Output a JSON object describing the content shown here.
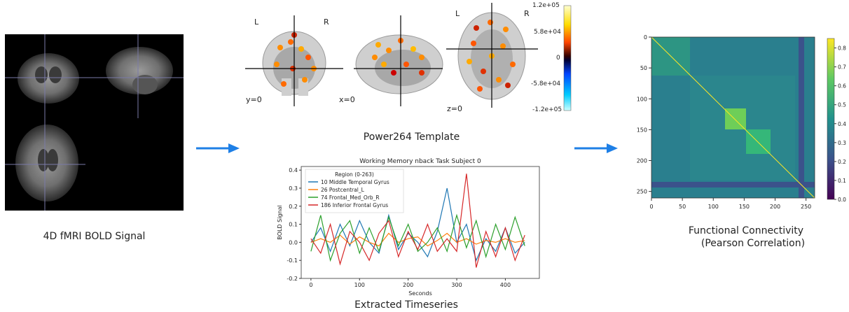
{
  "panels": {
    "bold": {
      "caption": "4D fMRI BOLD Signal"
    },
    "template": {
      "caption": "Power264 Template",
      "views": [
        {
          "coord": "y=0",
          "left": "L",
          "right": "R"
        },
        {
          "coord": "x=0"
        },
        {
          "coord": "z=0",
          "left": "L",
          "right": "R"
        }
      ],
      "colorbar": {
        "ticks": [
          "1.2e+05",
          "5.8e+04",
          "0",
          "-5.8e+04",
          "-1.2e+05"
        ]
      }
    },
    "timeseries": {
      "caption": "Extracted Timeseries"
    },
    "connectivity": {
      "caption_line1": "Functional Connectivity",
      "caption_line2": "(Pearson Correlation)",
      "axis_ticks": [
        "0",
        "50",
        "100",
        "150",
        "200",
        "250"
      ],
      "colorbar_ticks": [
        "0.8",
        "0.7",
        "0.6",
        "0.5",
        "0.4",
        "0.3",
        "0.2",
        "0.1",
        "0.0"
      ]
    }
  },
  "colors": {
    "arrow": "#1e7fe6"
  },
  "chart_data": [
    {
      "type": "line",
      "title": "Working Memory nback Task Subject 0",
      "xlabel": "Seconds",
      "ylabel": "BOLD Signal",
      "xlim": [
        -20,
        470
      ],
      "ylim": [
        -0.2,
        0.42
      ],
      "xticks": [
        0,
        100,
        200,
        300,
        400
      ],
      "yticks": [
        -0.2,
        -0.1,
        0.0,
        0.1,
        0.2,
        0.3,
        0.4
      ],
      "legend": {
        "title": "Region (0-263)",
        "placement": "top-left"
      },
      "x": [
        0,
        20,
        40,
        60,
        80,
        100,
        120,
        140,
        160,
        180,
        200,
        220,
        240,
        260,
        280,
        300,
        320,
        340,
        360,
        380,
        400,
        420,
        440
      ],
      "series": [
        {
          "name": "10 Middle Temporal Gyrus",
          "color": "#1f77b4",
          "values": [
            0.0,
            0.08,
            -0.05,
            0.1,
            -0.02,
            0.12,
            0.0,
            -0.06,
            0.15,
            -0.04,
            0.05,
            0.0,
            -0.08,
            0.06,
            0.3,
            0.0,
            0.1,
            -0.1,
            0.02,
            -0.05,
            0.08,
            -0.06,
            0.0
          ]
        },
        {
          "name": "26 Postcentral_L",
          "color": "#ff7f0e",
          "values": [
            0.0,
            0.02,
            0.0,
            0.04,
            -0.01,
            0.03,
            0.0,
            -0.02,
            0.05,
            0.0,
            0.02,
            0.03,
            -0.02,
            0.01,
            0.05,
            0.0,
            0.02,
            -0.01,
            0.01,
            0.0,
            0.02,
            0.0,
            0.01
          ]
        },
        {
          "name": "74 Frontal_Med_Orb_R",
          "color": "#2ca02c",
          "values": [
            -0.05,
            0.15,
            -0.1,
            0.05,
            0.12,
            -0.06,
            0.08,
            -0.05,
            0.14,
            -0.02,
            0.1,
            -0.05,
            0.0,
            0.08,
            -0.05,
            0.15,
            -0.03,
            0.12,
            -0.08,
            0.1,
            -0.04,
            0.14,
            -0.02
          ]
        },
        {
          "name": "186 Inferior Frontal Gyrus",
          "color": "#d62728",
          "values": [
            0.02,
            -0.06,
            0.1,
            -0.12,
            0.06,
            0.0,
            -0.1,
            0.05,
            0.12,
            -0.08,
            0.06,
            -0.04,
            0.1,
            -0.05,
            0.02,
            -0.05,
            0.38,
            -0.14,
            0.06,
            -0.08,
            0.08,
            -0.1,
            0.04
          ]
        }
      ]
    }
  ]
}
